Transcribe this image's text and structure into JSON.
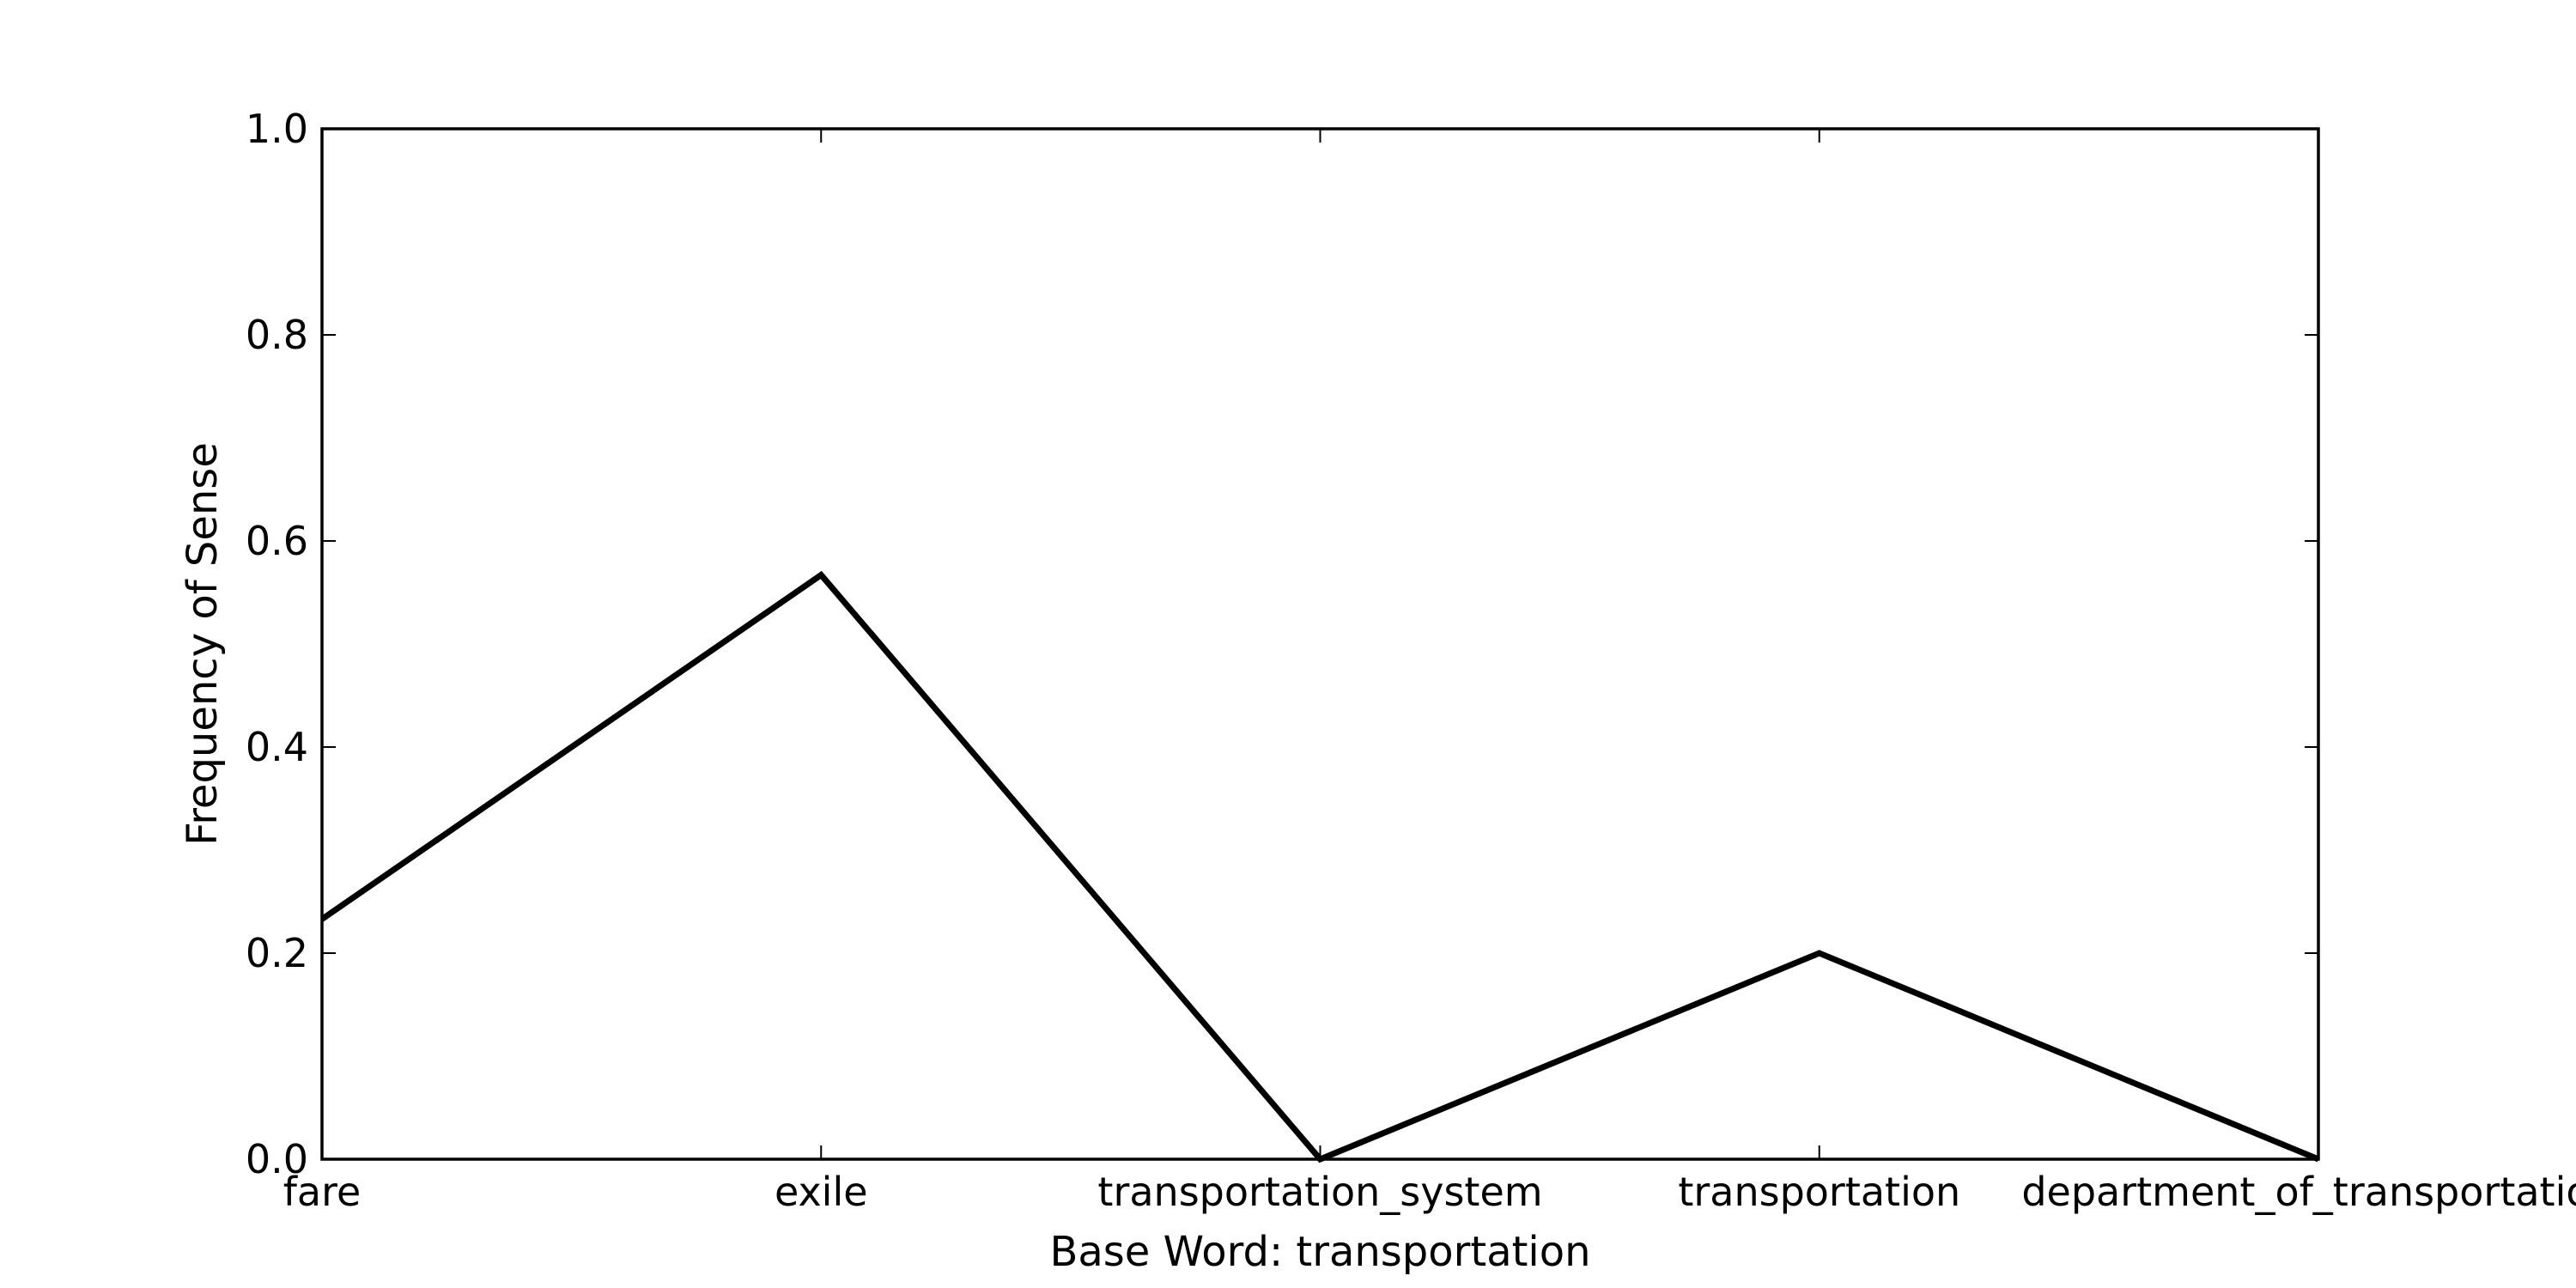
{
  "chart_data": {
    "type": "line",
    "title": "",
    "xlabel": "Base Word: transportation",
    "ylabel": "Frequency of Sense",
    "categories": [
      "fare",
      "exile",
      "transportation_system",
      "transportation",
      "department_of_transportation"
    ],
    "series": [
      {
        "values": [
          0.233,
          0.567,
          0.0,
          0.2,
          0.0
        ]
      }
    ],
    "ylim": [
      0.0,
      1.0
    ],
    "yticks": [
      "0.0",
      "0.2",
      "0.4",
      "0.6",
      "0.8",
      "1.0"
    ],
    "grid": false,
    "legend": "none",
    "line_color": "#000000"
  }
}
